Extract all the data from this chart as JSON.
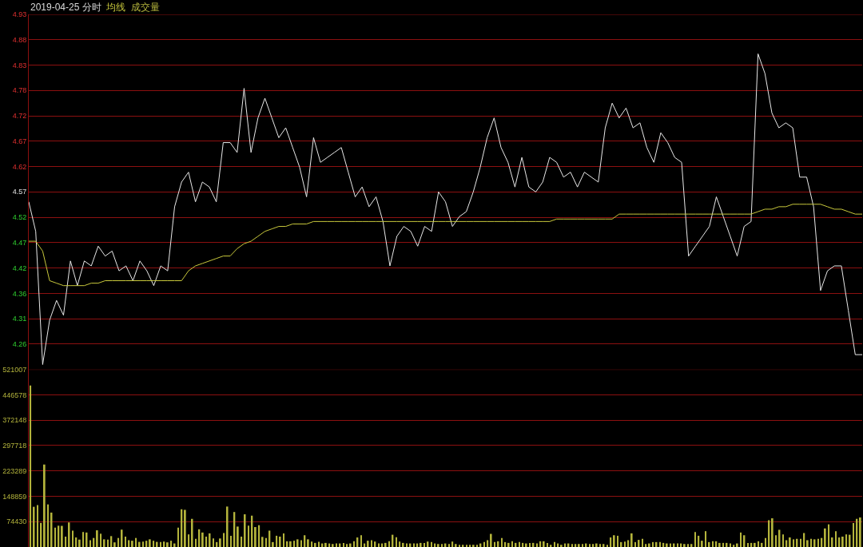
{
  "chart_data": [
    {
      "type": "line",
      "title": "2019-04-25 分时",
      "grid": "y",
      "tick_labels": "y",
      "categories": [
        null,
        null,
        null,
        null,
        null,
        null,
        null,
        null,
        null,
        null,
        null,
        null,
        null,
        null,
        null,
        null,
        null,
        null,
        null,
        null,
        null,
        null,
        null,
        null,
        null,
        null,
        null,
        null,
        null,
        null,
        null,
        null,
        null,
        null,
        null,
        null,
        null,
        null,
        null,
        null,
        null,
        null,
        null,
        null,
        null,
        null,
        null,
        null,
        null,
        null,
        null,
        null,
        null,
        null,
        null,
        null,
        null,
        null,
        null,
        null,
        null,
        null,
        null,
        null,
        null,
        null,
        null,
        null,
        null,
        null,
        null,
        null,
        null,
        null,
        null,
        null,
        null,
        null,
        null,
        null,
        null,
        null,
        null,
        null,
        null,
        null,
        null,
        null,
        null,
        null,
        null,
        null,
        null,
        null,
        null,
        null,
        null,
        null,
        null,
        null,
        null,
        null,
        null,
        null,
        null,
        null,
        null,
        null,
        null,
        null,
        null,
        null,
        null,
        null,
        null,
        null,
        null,
        null,
        null,
        null,
        null
      ],
      "ylim": [
        4.21,
        4.93
      ],
      "yticks": [
        4.93,
        {
          "value": 4.8786,
          "label": "4.88"
        },
        {
          "value": 4.8271,
          "label": "4.83"
        },
        {
          "value": 4.7757,
          "label": "4.78"
        },
        {
          "value": 4.7243,
          "label": "4.72"
        },
        {
          "value": 4.6729,
          "label": "4.67"
        },
        {
          "value": 4.6214,
          "label": "4.62"
        },
        4.57,
        {
          "value": 4.5186,
          "label": "4.52"
        },
        {
          "value": 4.4671,
          "label": "4.47"
        },
        {
          "value": 4.4157,
          "label": "4.42"
        },
        {
          "value": 4.3643,
          "label": "4.36"
        },
        {
          "value": 4.3129,
          "label": "4.31"
        },
        {
          "value": 4.2614,
          "label": "4.26"
        }
      ],
      "series": [
        {
          "color": "#e8e8e8",
          "values": [
            4.55,
            4.49,
            4.22,
            4.31,
            4.35,
            4.32,
            4.43,
            4.38,
            4.43,
            4.42,
            4.46,
            4.44,
            4.45,
            4.41,
            4.42,
            4.39,
            4.43,
            4.41,
            4.38,
            4.42,
            4.41,
            4.54,
            4.59,
            4.61,
            4.55,
            4.59,
            4.58,
            4.55,
            4.67,
            4.67,
            4.65,
            4.78,
            4.65,
            4.72,
            4.76,
            4.72,
            4.68,
            4.7,
            4.66,
            4.62,
            4.56,
            4.68,
            4.63,
            4.64,
            4.65,
            4.66,
            4.61,
            4.56,
            4.58,
            4.54,
            4.56,
            4.51,
            4.42,
            4.48,
            4.5,
            4.49,
            4.46,
            4.5,
            4.49,
            4.57,
            4.55,
            4.5,
            4.52,
            4.53,
            4.57,
            4.62,
            4.68,
            4.72,
            4.66,
            4.63,
            4.58,
            4.64,
            4.58,
            4.57,
            4.59,
            4.64,
            4.63,
            4.6,
            4.61,
            4.58,
            4.61,
            4.6,
            4.59,
            4.7,
            4.75,
            4.72,
            4.74,
            4.7,
            4.71,
            4.66,
            4.63,
            4.69,
            4.67,
            4.64,
            4.63,
            4.44,
            4.46,
            4.48,
            4.5,
            4.56,
            4.52,
            4.48,
            4.44,
            4.5,
            4.51,
            4.85,
            4.81,
            4.73,
            4.7,
            4.71,
            4.7,
            4.6,
            4.6,
            4.54,
            4.37,
            4.41,
            4.42,
            4.42,
            4.33,
            4.24,
            4.24
          ]
        },
        {
          "name": "均线",
          "color": "#c8c83c",
          "values": [
            4.47,
            4.47,
            4.45,
            4.39,
            4.385,
            4.38,
            4.38,
            4.38,
            4.38,
            4.385,
            4.385,
            4.39,
            4.39,
            4.39,
            4.39,
            4.39,
            4.39,
            4.39,
            4.39,
            4.39,
            4.39,
            4.39,
            4.39,
            4.41,
            4.42,
            4.425,
            4.43,
            4.435,
            4.44,
            4.44,
            4.455,
            4.465,
            4.47,
            4.48,
            4.49,
            4.495,
            4.5,
            4.5,
            4.505,
            4.505,
            4.505,
            4.51,
            4.51,
            4.51,
            4.51,
            4.51,
            4.51,
            4.51,
            4.51,
            4.51,
            4.51,
            4.51,
            4.51,
            4.51,
            4.51,
            4.51,
            4.51,
            4.51,
            4.51,
            4.51,
            4.51,
            4.51,
            4.51,
            4.51,
            4.51,
            4.51,
            4.51,
            4.51,
            4.51,
            4.51,
            4.51,
            4.51,
            4.51,
            4.51,
            4.51,
            4.51,
            4.515,
            4.515,
            4.515,
            4.515,
            4.515,
            4.515,
            4.515,
            4.515,
            4.515,
            4.525,
            4.525,
            4.525,
            4.525,
            4.525,
            4.525,
            4.525,
            4.525,
            4.525,
            4.525,
            4.525,
            4.525,
            4.525,
            4.525,
            4.525,
            4.525,
            4.525,
            4.525,
            4.525,
            4.525,
            4.53,
            4.535,
            4.535,
            4.54,
            4.54,
            4.545,
            4.545,
            4.545,
            4.545,
            4.545,
            4.54,
            4.535,
            4.535,
            4.53,
            4.525,
            4.525
          ]
        }
      ]
    },
    {
      "type": "bar",
      "grid": "y",
      "tick_labels": "y",
      "categories": [
        null,
        null,
        null,
        null,
        null,
        null,
        null,
        null,
        null,
        null,
        null,
        null,
        null,
        null,
        null,
        null,
        null,
        null,
        null,
        null,
        null,
        null,
        null,
        null,
        null,
        null,
        null,
        null,
        null,
        null,
        null,
        null,
        null,
        null,
        null,
        null,
        null,
        null,
        null,
        null,
        null,
        null,
        null,
        null,
        null,
        null,
        null,
        null,
        null,
        null,
        null,
        null,
        null,
        null,
        null,
        null,
        null,
        null,
        null,
        null,
        null,
        null,
        null,
        null,
        null,
        null,
        null,
        null,
        null,
        null,
        null,
        null,
        null,
        null,
        null,
        null,
        null,
        null,
        null,
        null,
        null,
        null,
        null,
        null,
        null,
        null,
        null,
        null,
        null,
        null,
        null,
        null,
        null,
        null,
        null,
        null,
        null,
        null,
        null,
        null,
        null,
        null,
        null,
        null,
        null,
        null,
        null,
        null,
        null,
        null,
        null,
        null,
        null,
        null,
        null,
        null,
        null,
        null,
        null,
        null,
        null,
        null,
        null,
        null,
        null,
        null,
        null,
        null,
        null,
        null,
        null,
        null,
        null,
        null,
        null,
        null,
        null,
        null,
        null,
        null,
        null,
        null,
        null,
        null,
        null,
        null,
        null,
        null,
        null,
        null,
        null,
        null,
        null,
        null,
        null,
        null,
        null,
        null,
        null,
        null,
        null,
        null,
        null,
        null,
        null,
        null,
        null,
        null,
        null,
        null,
        null,
        null,
        null,
        null,
        null,
        null,
        null,
        null,
        null,
        null,
        null,
        null,
        null,
        null,
        null,
        null,
        null,
        null,
        null,
        null,
        null,
        null,
        null,
        null,
        null,
        null,
        null,
        null,
        null,
        null,
        null,
        null,
        null,
        null,
        null,
        null,
        null,
        null,
        null,
        null,
        null,
        null,
        null,
        null,
        null,
        null,
        null,
        null,
        null,
        null,
        null,
        null,
        null,
        null,
        null,
        null,
        null,
        null,
        null,
        null,
        null,
        null,
        null,
        null,
        null,
        null,
        null
      ],
      "ylim": [
        0,
        521007
      ],
      "yticks": [
        521007,
        446578,
        372148,
        297718,
        223289,
        148859,
        74430
      ],
      "series": [
        {
          "name": "成交量",
          "color": "#b4b43c",
          "values": [
            474000,
            118000,
            123000,
            70600,
            242000,
            125000,
            101000,
            57000,
            62500,
            62000,
            30500,
            72000,
            48000,
            28000,
            21700,
            44000,
            42500,
            20000,
            26500,
            49000,
            39000,
            22500,
            21700,
            32000,
            13600,
            26500,
            51000,
            30500,
            20000,
            18400,
            26500,
            15000,
            16000,
            18400,
            22500,
            18400,
            15000,
            14400,
            16000,
            13600,
            18400,
            10400,
            57000,
            110700,
            109000,
            37000,
            82600,
            24000,
            52000,
            42500,
            30500,
            40000,
            25000,
            14400,
            25000,
            41000,
            118700,
            33000,
            102700,
            60000,
            30500,
            96000,
            62500,
            92000,
            58500,
            64000,
            29700,
            26500,
            48000,
            14400,
            33000,
            30500,
            40000,
            16800,
            16800,
            18400,
            22500,
            20000,
            34500,
            22500,
            16000,
            12000,
            15000,
            10400,
            12000,
            10400,
            8800,
            10400,
            10400,
            12000,
            8800,
            10400,
            16800,
            28000,
            34500,
            10400,
            18400,
            20000,
            16000,
            10400,
            10400,
            12000,
            16800,
            36000,
            29000,
            16000,
            12000,
            10400,
            10400,
            10400,
            10400,
            12000,
            12000,
            16000,
            14400,
            10400,
            8800,
            8800,
            10400,
            8800,
            16000,
            8800,
            6400,
            6400,
            6400,
            6400,
            6400,
            6400,
            10400,
            14400,
            20000,
            38500,
            14400,
            16800,
            26500,
            14400,
            12000,
            16800,
            12000,
            14400,
            12000,
            10400,
            12000,
            12000,
            10400,
            16800,
            16800,
            12000,
            6400,
            14400,
            10400,
            6400,
            10400,
            10400,
            8800,
            8800,
            8800,
            8800,
            10400,
            8800,
            8800,
            10400,
            8800,
            8800,
            6400,
            28000,
            34500,
            33000,
            14400,
            16000,
            20000,
            40000,
            14400,
            20900,
            24000,
            8800,
            10400,
            14400,
            14400,
            14400,
            12000,
            10400,
            10400,
            10400,
            10400,
            10400,
            8800,
            8800,
            8800,
            44000,
            33000,
            18400,
            46500,
            14400,
            16800,
            16800,
            12000,
            12000,
            12000,
            10400,
            6400,
            10400,
            42500,
            34500,
            12000,
            12000,
            12000,
            16800,
            12000,
            26500,
            78600,
            84200,
            34500,
            50500,
            37000,
            20000,
            28000,
            22500,
            24000,
            24000,
            41000,
            20000,
            24000,
            22500,
            24000,
            26500,
            54500,
            66500,
            28000,
            46500,
            28000,
            30500,
            37000,
            36000,
            70600,
            82600,
            86600
          ]
        }
      ]
    }
  ]
}
